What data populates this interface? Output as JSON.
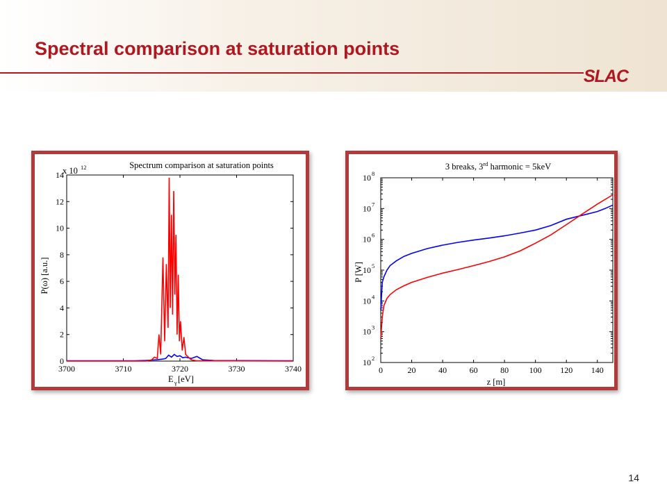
{
  "slide": {
    "title": "Spectral comparison at saturation points",
    "logo": "SLAC",
    "page_number": "14",
    "colors": {
      "title": "#b0171f",
      "frame": "#b23a3a",
      "series_red": "#ff0000",
      "series_blue": "#0000ff"
    }
  },
  "chart_data": [
    {
      "type": "line",
      "title": "Spectrum comparison at saturation points",
      "xlabel": "E",
      "xlabel_sub": "γ",
      "xlabel_unit": " [eV]",
      "ylabel": "P(ω) [a.u.]",
      "y_multiplier_base": "x 10",
      "y_multiplier_exp": "12",
      "xlim": [
        3700,
        3740
      ],
      "ylim": [
        0,
        14
      ],
      "x_ticks": [
        "3700",
        "3710",
        "3720",
        "3730",
        "3740"
      ],
      "y_ticks": [
        "0",
        "2",
        "4",
        "6",
        "8",
        "10",
        "12",
        "14"
      ],
      "grid": false,
      "series": [
        {
          "color": "#0000ff",
          "x": [
            3700,
            3712,
            3714,
            3715,
            3716,
            3717,
            3717.5,
            3718,
            3718.5,
            3719,
            3719.5,
            3720,
            3720.5,
            3721,
            3722,
            3723,
            3724,
            3726,
            3740
          ],
          "y": [
            0.02,
            0.02,
            0.05,
            0.08,
            0.1,
            0.15,
            0.2,
            0.45,
            0.3,
            0.5,
            0.35,
            0.4,
            0.25,
            0.3,
            0.2,
            0.35,
            0.1,
            0.04,
            0.02
          ]
        },
        {
          "color": "#ff0000",
          "x": [
            3700,
            3714,
            3715,
            3715.5,
            3716,
            3716.3,
            3716.6,
            3717,
            3717.3,
            3717.6,
            3717.9,
            3718.1,
            3718.3,
            3718.5,
            3718.7,
            3718.9,
            3719.1,
            3719.3,
            3719.5,
            3719.7,
            3719.9,
            3720.1,
            3720.4,
            3720.7,
            3721,
            3721.5,
            3722,
            3723,
            3740
          ],
          "y": [
            0,
            0,
            0.1,
            0.3,
            0.2,
            2.0,
            0.5,
            7.8,
            1.5,
            7.3,
            2.5,
            13.8,
            4.0,
            11.0,
            3.5,
            12.8,
            5.0,
            9.5,
            2.0,
            6.5,
            1.5,
            3.0,
            0.8,
            1.8,
            0.5,
            0.3,
            0.1,
            0.02,
            0
          ]
        }
      ]
    },
    {
      "type": "line",
      "title_pre": "3 breaks, 3",
      "title_sup": "rd",
      "title_post": " harmonic = 5keV",
      "xlabel": "z [m]",
      "ylabel": "P [W]",
      "xlim": [
        0,
        150
      ],
      "ylim_exp": [
        2,
        8
      ],
      "y_scale": "log",
      "x_ticks": [
        "0",
        "20",
        "40",
        "60",
        "80",
        "100",
        "120",
        "140"
      ],
      "y_ticks": [
        {
          "base": "10",
          "exp": "2"
        },
        {
          "base": "10",
          "exp": "3"
        },
        {
          "base": "10",
          "exp": "4"
        },
        {
          "base": "10",
          "exp": "5"
        },
        {
          "base": "10",
          "exp": "6"
        },
        {
          "base": "10",
          "exp": "7"
        },
        {
          "base": "10",
          "exp": "8"
        }
      ],
      "grid": false,
      "series": [
        {
          "color": "#0000ff",
          "x": [
            0,
            1,
            2,
            4,
            6,
            10,
            15,
            20,
            30,
            40,
            50,
            60,
            70,
            80,
            90,
            100,
            110,
            120,
            130,
            140,
            145,
            150
          ],
          "y": [
            5000,
            40000,
            60000,
            100000,
            140000,
            200000,
            280000,
            350000,
            500000,
            650000,
            800000,
            950000,
            1100000,
            1300000,
            1600000,
            2000000,
            2800000,
            4500000,
            6000000,
            8000000,
            10000000,
            13000000
          ]
        },
        {
          "color": "#ff0000",
          "x": [
            0,
            1,
            2,
            4,
            6,
            10,
            15,
            20,
            30,
            40,
            50,
            60,
            70,
            80,
            90,
            100,
            110,
            120,
            130,
            140,
            150
          ],
          "y": [
            600,
            3000,
            7000,
            12000,
            16000,
            23000,
            31000,
            40000,
            58000,
            80000,
            105000,
            140000,
            190000,
            270000,
            420000,
            750000,
            1400000,
            3000000,
            6500000,
            14000000,
            28000000
          ]
        }
      ]
    }
  ]
}
